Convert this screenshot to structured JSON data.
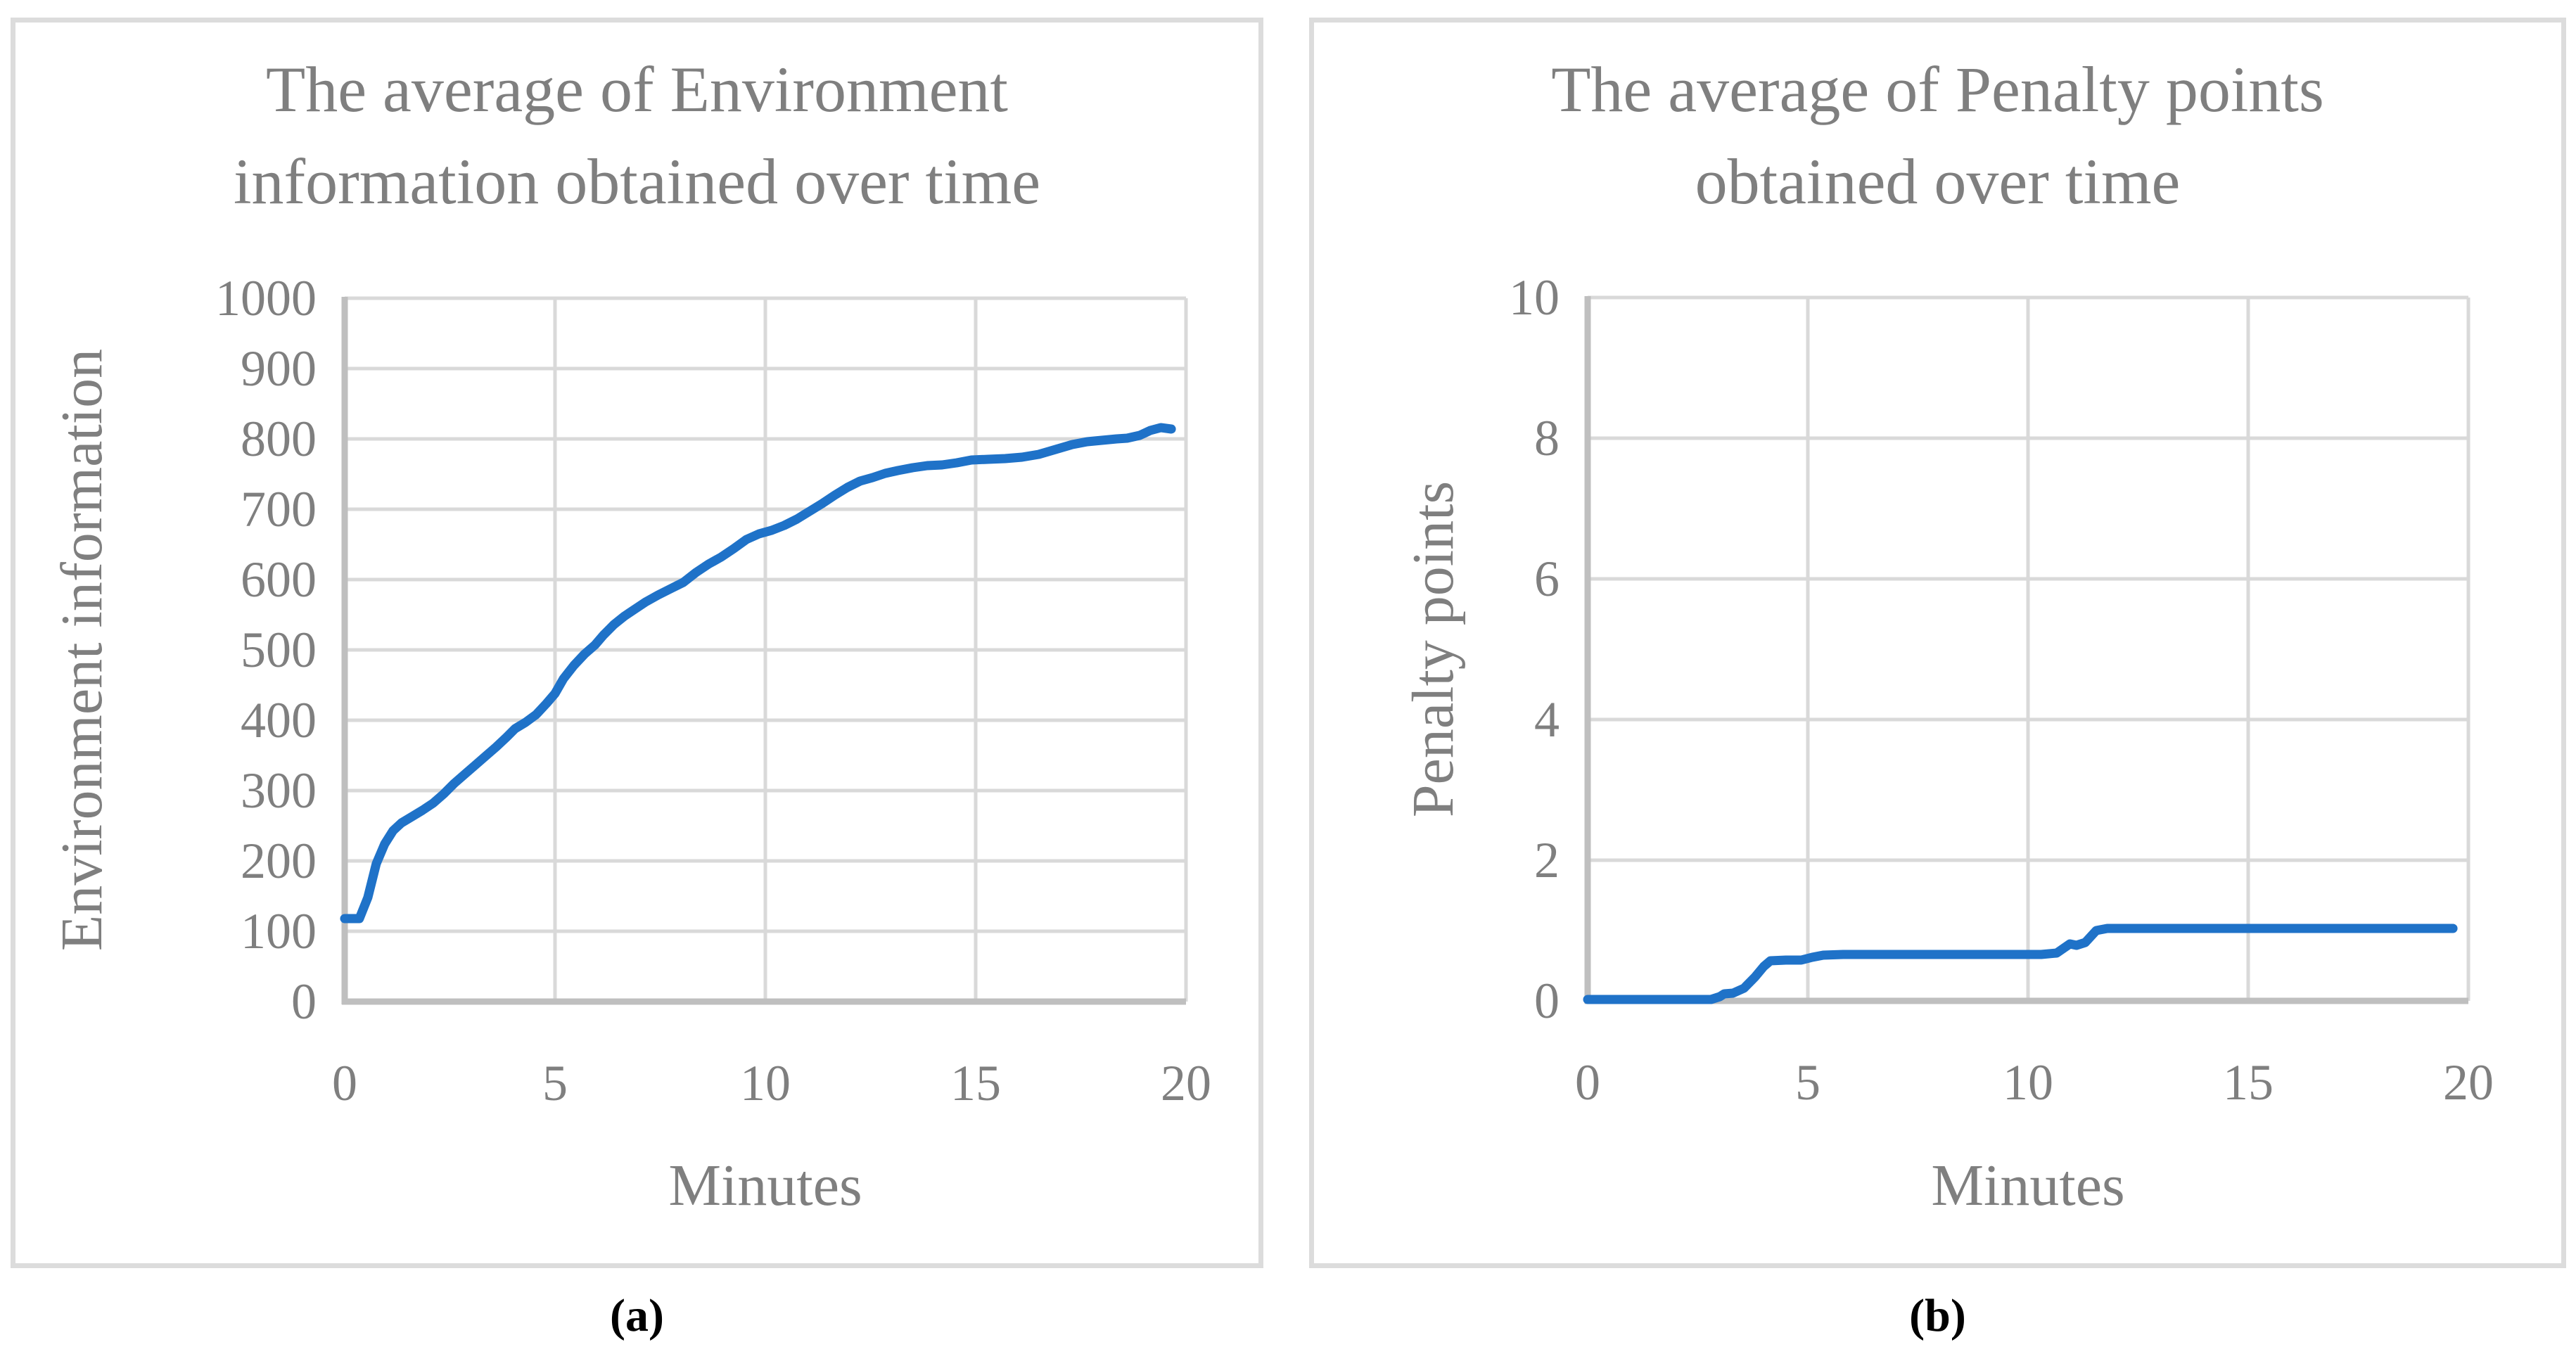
{
  "figure": {
    "background": "#ffffff",
    "panel_border_color": "#dcdcdc",
    "text_color": "#7f7f7f",
    "gridline_color": "#d9d9d9",
    "axis_line_color": "#bfbfbf",
    "series_color": "#1f72c8",
    "caption_color": "#000000"
  },
  "captions": {
    "a": "(a)",
    "b": "(b)"
  },
  "chart_data": [
    {
      "id": "environment",
      "type": "line",
      "title_lines": [
        "The average of Environment",
        "information obtained over time"
      ],
      "xlabel": "Minutes",
      "ylabel": "Environment information",
      "xlim": [
        0,
        20
      ],
      "ylim": [
        0,
        1000
      ],
      "x_ticks": [
        0,
        5,
        10,
        15,
        20
      ],
      "y_ticks": [
        0,
        100,
        200,
        300,
        400,
        500,
        600,
        700,
        800,
        900,
        1000
      ],
      "grid": true,
      "legend": "none",
      "series": [
        {
          "name": "Environment information",
          "points": [
            [
              0,
              118
            ],
            [
              0.35,
              118
            ],
            [
              0.55,
              148
            ],
            [
              0.75,
              196
            ],
            [
              0.95,
              224
            ],
            [
              1.15,
              243
            ],
            [
              1.35,
              254
            ],
            [
              1.6,
              263
            ],
            [
              1.85,
              272
            ],
            [
              2.1,
              282
            ],
            [
              2.35,
              295
            ],
            [
              2.6,
              310
            ],
            [
              2.85,
              323
            ],
            [
              3.1,
              336
            ],
            [
              3.35,
              349
            ],
            [
              3.6,
              362
            ],
            [
              3.85,
              376
            ],
            [
              4.05,
              388
            ],
            [
              4.3,
              397
            ],
            [
              4.55,
              408
            ],
            [
              4.8,
              424
            ],
            [
              5.0,
              438
            ],
            [
              5.2,
              459
            ],
            [
              5.45,
              478
            ],
            [
              5.7,
              494
            ],
            [
              5.95,
              507
            ],
            [
              6.15,
              521
            ],
            [
              6.4,
              536
            ],
            [
              6.65,
              548
            ],
            [
              6.9,
              558
            ],
            [
              7.15,
              568
            ],
            [
              7.45,
              578
            ],
            [
              7.75,
              587
            ],
            [
              8.05,
              596
            ],
            [
              8.35,
              610
            ],
            [
              8.65,
              622
            ],
            [
              8.95,
              632
            ],
            [
              9.25,
              644
            ],
            [
              9.55,
              657
            ],
            [
              9.85,
              665
            ],
            [
              10.15,
              670
            ],
            [
              10.45,
              677
            ],
            [
              10.75,
              686
            ],
            [
              11.05,
              697
            ],
            [
              11.35,
              708
            ],
            [
              11.65,
              720
            ],
            [
              11.95,
              731
            ],
            [
              12.25,
              740
            ],
            [
              12.55,
              745
            ],
            [
              12.85,
              751
            ],
            [
              13.15,
              755
            ],
            [
              13.5,
              759
            ],
            [
              13.85,
              762
            ],
            [
              14.2,
              763
            ],
            [
              14.55,
              766
            ],
            [
              14.9,
              770
            ],
            [
              15.3,
              771
            ],
            [
              15.7,
              772
            ],
            [
              16.1,
              774
            ],
            [
              16.5,
              778
            ],
            [
              16.9,
              785
            ],
            [
              17.3,
              792
            ],
            [
              17.65,
              796
            ],
            [
              18.0,
              798
            ],
            [
              18.35,
              800
            ],
            [
              18.6,
              801
            ],
            [
              18.9,
              805
            ],
            [
              19.15,
              812
            ],
            [
              19.4,
              816
            ],
            [
              19.65,
              814
            ]
          ]
        }
      ]
    },
    {
      "id": "penalty",
      "type": "line",
      "title_lines": [
        "The average of Penalty points",
        "obtained over time"
      ],
      "xlabel": "Minutes",
      "ylabel": "Penalty points",
      "xlim": [
        0,
        20
      ],
      "ylim": [
        0,
        10
      ],
      "x_ticks": [
        0,
        5,
        10,
        15,
        20
      ],
      "y_ticks": [
        0,
        2,
        4,
        6,
        8,
        10
      ],
      "grid": true,
      "legend": "none",
      "series": [
        {
          "name": "Penalty points",
          "points": [
            [
              0,
              0.02
            ],
            [
              1.0,
              0.02
            ],
            [
              2.0,
              0.02
            ],
            [
              2.8,
              0.02
            ],
            [
              3.0,
              0.06
            ],
            [
              3.1,
              0.1
            ],
            [
              3.3,
              0.11
            ],
            [
              3.55,
              0.18
            ],
            [
              3.8,
              0.34
            ],
            [
              4.0,
              0.49
            ],
            [
              4.15,
              0.57
            ],
            [
              4.5,
              0.58
            ],
            [
              4.85,
              0.58
            ],
            [
              5.1,
              0.62
            ],
            [
              5.35,
              0.65
            ],
            [
              5.8,
              0.66
            ],
            [
              6.5,
              0.66
            ],
            [
              7.5,
              0.66
            ],
            [
              8.5,
              0.66
            ],
            [
              9.5,
              0.66
            ],
            [
              10.3,
              0.66
            ],
            [
              10.65,
              0.68
            ],
            [
              10.95,
              0.81
            ],
            [
              11.1,
              0.79
            ],
            [
              11.3,
              0.83
            ],
            [
              11.55,
              1.0
            ],
            [
              11.8,
              1.03
            ],
            [
              12.5,
              1.03
            ],
            [
              13.5,
              1.03
            ],
            [
              14.5,
              1.03
            ],
            [
              15.5,
              1.03
            ],
            [
              16.5,
              1.03
            ],
            [
              17.5,
              1.03
            ],
            [
              18.5,
              1.03
            ],
            [
              19.65,
              1.03
            ]
          ]
        }
      ]
    }
  ]
}
